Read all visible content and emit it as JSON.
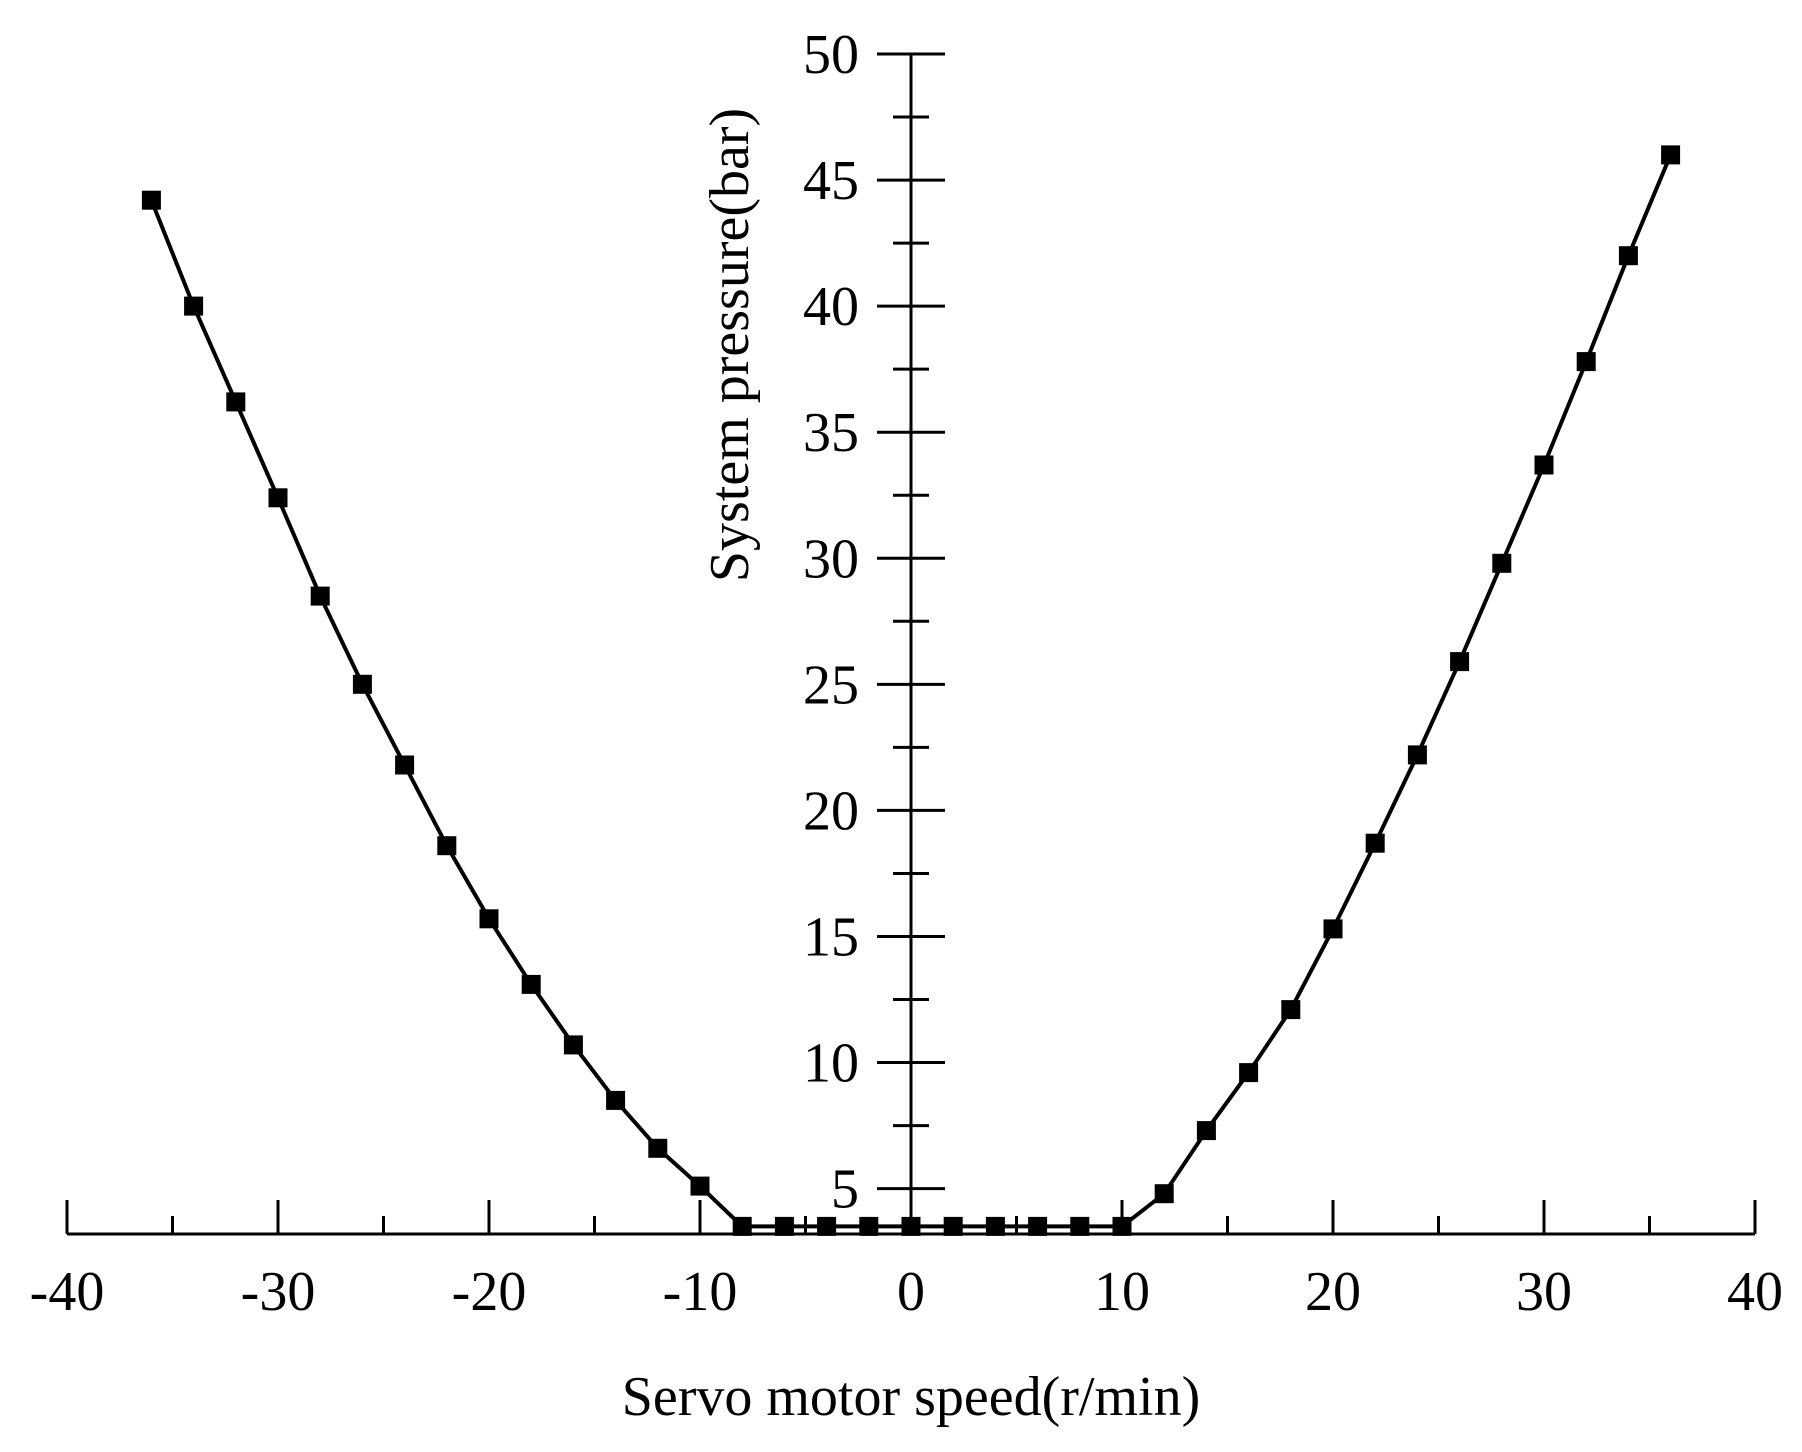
{
  "chart_data": {
    "type": "line",
    "title": "",
    "xlabel": "Servo motor speed(r/min)",
    "ylabel": "System pressure(bar)",
    "xlim": [
      -40,
      40
    ],
    "ylim": [
      3.2,
      50
    ],
    "grid": false,
    "x_ticks": [
      -40,
      -30,
      -20,
      -10,
      0,
      10,
      20,
      30,
      40
    ],
    "y_ticks": [
      5,
      10,
      15,
      20,
      25,
      30,
      35,
      40,
      45,
      50
    ],
    "x_ticks_minor": [
      -35,
      -25,
      -15,
      -5,
      5,
      15,
      25,
      35
    ],
    "y_ticks_minor": [
      7.5,
      12.5,
      17.5,
      22.5,
      27.5,
      32.5,
      37.5,
      42.5,
      47.5
    ],
    "series": [
      {
        "color": "#000000",
        "marker": "square",
        "x": [
          -36,
          -34,
          -32,
          -30,
          -28,
          -26,
          -24,
          -22,
          -20,
          -18,
          -16,
          -14,
          -12,
          -10,
          -8,
          -6,
          -4,
          -2,
          0,
          2,
          4,
          6,
          8,
          10,
          12,
          14,
          16,
          18,
          20,
          22,
          24,
          26,
          28,
          30,
          32,
          34,
          36
        ],
        "y": [
          44.2,
          40.0,
          36.2,
          32.4,
          28.5,
          25.0,
          21.8,
          18.6,
          15.7,
          13.1,
          10.7,
          8.5,
          6.6,
          5.1,
          3.5,
          3.5,
          3.5,
          3.5,
          3.5,
          3.5,
          3.5,
          3.5,
          3.5,
          3.5,
          4.8,
          7.3,
          9.6,
          12.1,
          15.3,
          18.7,
          22.2,
          25.9,
          29.8,
          33.7,
          37.8,
          42.0,
          46.0
        ]
      }
    ]
  }
}
